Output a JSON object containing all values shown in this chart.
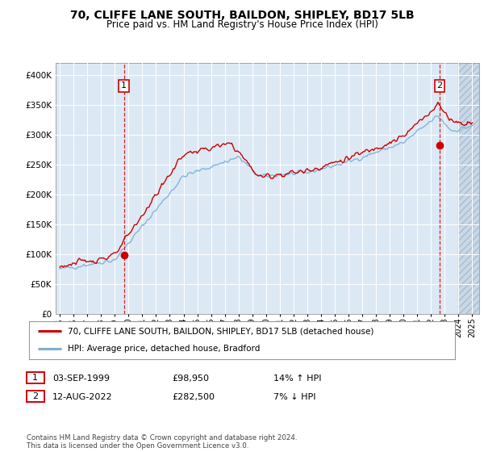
{
  "title": "70, CLIFFE LANE SOUTH, BAILDON, SHIPLEY, BD17 5LB",
  "subtitle": "Price paid vs. HM Land Registry's House Price Index (HPI)",
  "legend_line1": "70, CLIFFE LANE SOUTH, BAILDON, SHIPLEY, BD17 5LB (detached house)",
  "legend_line2": "HPI: Average price, detached house, Bradford",
  "sale1_date": "03-SEP-1999",
  "sale1_price": "£98,950",
  "sale1_hpi": "14% ↑ HPI",
  "sale2_date": "12-AUG-2022",
  "sale2_price": "£282,500",
  "sale2_hpi": "7% ↓ HPI",
  "footer": "Contains HM Land Registry data © Crown copyright and database right 2024.\nThis data is licensed under the Open Government Licence v3.0.",
  "bg_color": "#dce9f5",
  "hatch_color": "#c8d8e8",
  "red_line_color": "#cc0000",
  "blue_line_color": "#7bafd4",
  "marker_color": "#cc0000",
  "sale1_x": 1999.67,
  "sale1_y": 98950,
  "sale2_x": 2022.62,
  "sale2_y": 282500,
  "hatch_start": 2024.0,
  "ylim": [
    0,
    420000
  ],
  "xlim_start": 1994.7,
  "xlim_end": 2025.5,
  "yticks": [
    0,
    50000,
    100000,
    150000,
    200000,
    250000,
    300000,
    350000,
    400000
  ],
  "xtick_years": [
    1995,
    1996,
    1997,
    1998,
    1999,
    2000,
    2001,
    2002,
    2003,
    2004,
    2005,
    2006,
    2007,
    2008,
    2009,
    2010,
    2011,
    2012,
    2013,
    2014,
    2015,
    2016,
    2017,
    2018,
    2019,
    2020,
    2021,
    2022,
    2023,
    2024,
    2025
  ],
  "hpi_seed": 42,
  "red_seed": 123
}
